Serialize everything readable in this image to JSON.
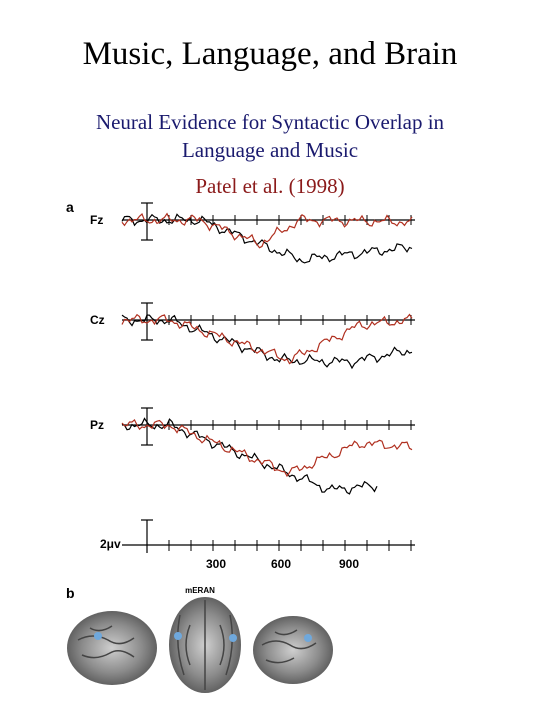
{
  "title": "Music, Language, and Brain",
  "subtitle": [
    "Neural Evidence for Syntactic Overlap in",
    "Language and Music"
  ],
  "citation": "Patel et al. (1998)",
  "figure": {
    "panel_a": {
      "label": "a",
      "channels": [
        "Fz",
        "Cz",
        "Pz"
      ],
      "scale_label": "2μv",
      "x_ticks": [
        "300",
        "600",
        "900"
      ]
    },
    "panel_b": {
      "label": "b",
      "caption": "mERAN"
    }
  }
}
